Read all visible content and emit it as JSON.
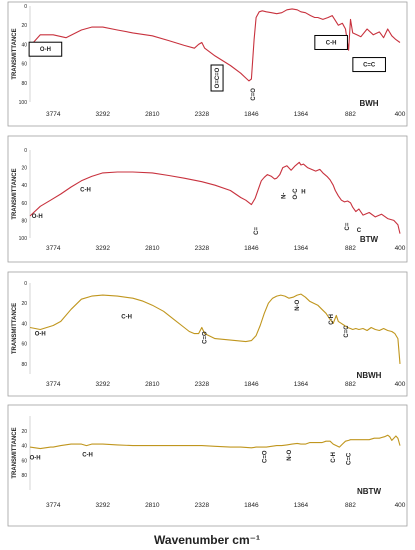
{
  "figure": {
    "xlabel": "Wavenumber cm⁻¹"
  },
  "chart_data": [
    {
      "type": "line",
      "sample": "BWH",
      "color": "#c8323e",
      "ylabel": "TRANSMITTANCE",
      "yticks": [
        0,
        20,
        40,
        60,
        80,
        100
      ],
      "ylim": [
        0,
        100
      ],
      "y_inverted": true,
      "xticks": [
        "3774",
        "3292",
        "2810",
        "2328",
        "1846",
        "1364",
        "882",
        "400"
      ],
      "xlim": [
        4000,
        400
      ],
      "x": [
        4000,
        3900,
        3774,
        3650,
        3500,
        3400,
        3292,
        3150,
        3000,
        2810,
        2650,
        2500,
        2400,
        2360,
        2328,
        2300,
        2200,
        2050,
        1950,
        1900,
        1870,
        1846,
        1820,
        1800,
        1770,
        1740,
        1700,
        1650,
        1600,
        1550,
        1500,
        1450,
        1400,
        1364,
        1320,
        1270,
        1230,
        1200,
        1150,
        1100,
        1060,
        1030,
        1000,
        960,
        930,
        900,
        882,
        860,
        820,
        780,
        720,
        660,
        600,
        560,
        520,
        480,
        440,
        400
      ],
      "y": [
        42,
        30,
        30,
        33,
        25,
        22,
        22,
        25,
        28,
        31,
        36,
        41,
        44,
        40,
        38,
        44,
        52,
        62,
        70,
        75,
        78,
        76,
        35,
        12,
        6,
        5,
        6,
        7,
        8,
        7,
        4,
        3,
        4,
        6,
        7,
        10,
        12,
        12,
        14,
        12,
        10,
        15,
        20,
        18,
        24,
        46,
        14,
        28,
        30,
        32,
        24,
        30,
        27,
        33,
        24,
        31,
        35,
        38
      ],
      "annotations": [
        {
          "text": "O-H",
          "x": 3850,
          "y": 45,
          "boxed": true
        },
        {
          "text": "C-H",
          "x": 1070,
          "y": 38,
          "boxed": true
        },
        {
          "text": "C=C",
          "x": 700,
          "y": 61,
          "boxed": true
        },
        {
          "text": "O=C=O",
          "x": 2180,
          "y": 75,
          "boxed": true,
          "vertical": true
        },
        {
          "text": "C=O",
          "x": 1830,
          "y": 92,
          "vertical": true
        }
      ]
    },
    {
      "type": "line",
      "sample": "BTW",
      "color": "#c8323e",
      "ylabel": "TRANSMITTANCE",
      "yticks": [
        0,
        20,
        40,
        60,
        80,
        100
      ],
      "ylim": [
        0,
        100
      ],
      "y_inverted": true,
      "xticks": [
        "3774",
        "3292",
        "2810",
        "2328",
        "1846",
        "1364",
        "882",
        "400"
      ],
      "xlim": [
        4000,
        400
      ],
      "x": [
        4000,
        3900,
        3800,
        3700,
        3600,
        3500,
        3400,
        3292,
        3150,
        3000,
        2810,
        2650,
        2500,
        2328,
        2200,
        2050,
        1950,
        1900,
        1846,
        1810,
        1780,
        1750,
        1720,
        1690,
        1650,
        1620,
        1600,
        1570,
        1540,
        1500,
        1460,
        1420,
        1380,
        1364,
        1340,
        1300,
        1260,
        1220,
        1180,
        1150,
        1110,
        1080,
        1050,
        1030,
        1000,
        970,
        940,
        910,
        882,
        860,
        830,
        800,
        760,
        700,
        640,
        580,
        520,
        460,
        420,
        400
      ],
      "y": [
        75,
        64,
        57,
        50,
        42,
        35,
        30,
        26,
        25,
        25,
        26,
        29,
        32,
        36,
        40,
        46,
        54,
        57,
        62,
        55,
        45,
        35,
        31,
        28,
        30,
        33,
        32,
        28,
        20,
        18,
        23,
        18,
        14,
        17,
        16,
        20,
        22,
        24,
        22,
        26,
        30,
        34,
        40,
        46,
        52,
        57,
        59,
        58,
        60,
        65,
        70,
        67,
        74,
        71,
        76,
        73,
        78,
        80,
        85,
        95
      ],
      "annotations": [
        {
          "text": "O-H",
          "x": 3930,
          "y": 75
        },
        {
          "text": "C-H",
          "x": 3460,
          "y": 45
        },
        {
          "text": "C=",
          "x": 1800,
          "y": 92,
          "vertical": true
        },
        {
          "text": "N-",
          "x": 1535,
          "y": 52,
          "vertical": true
        },
        {
          "text": "O-C",
          "x": 1420,
          "y": 50,
          "vertical": true
        },
        {
          "text": "H",
          "x": 1340,
          "y": 47
        },
        {
          "text": "C=",
          "x": 915,
          "y": 87,
          "vertical": true
        },
        {
          "text": "C",
          "x": 800,
          "y": 91
        }
      ]
    },
    {
      "type": "line",
      "sample": "NBWH",
      "color": "#c0961e",
      "ylabel": "TRANSMITTANCE",
      "yticks": [
        0,
        20,
        40,
        60,
        80
      ],
      "ylim": [
        0,
        90
      ],
      "y_inverted": true,
      "xticks": [
        "3774",
        "3292",
        "2810",
        "2328",
        "1846",
        "1364",
        "882",
        "400"
      ],
      "xlim": [
        4000,
        400
      ],
      "x": [
        4000,
        3900,
        3774,
        3700,
        3600,
        3500,
        3400,
        3292,
        3150,
        3000,
        2900,
        2810,
        2700,
        2600,
        2500,
        2450,
        2400,
        2360,
        2328,
        2300,
        2200,
        2100,
        2000,
        1900,
        1846,
        1800,
        1760,
        1720,
        1680,
        1640,
        1600,
        1560,
        1520,
        1480,
        1440,
        1400,
        1364,
        1320,
        1280,
        1240,
        1200,
        1160,
        1120,
        1080,
        1050,
        1020,
        1000,
        970,
        940,
        910,
        882,
        860,
        830,
        800,
        760,
        720,
        680,
        640,
        600,
        560,
        520,
        480,
        450,
        420,
        400
      ],
      "y": [
        44,
        46,
        42,
        38,
        26,
        16,
        13,
        12,
        13,
        15,
        18,
        22,
        28,
        36,
        44,
        48,
        50,
        50,
        44,
        50,
        55,
        56,
        57,
        58,
        57,
        52,
        42,
        30,
        20,
        15,
        13,
        12,
        13,
        15,
        14,
        12,
        11,
        14,
        18,
        20,
        22,
        26,
        30,
        36,
        40,
        32,
        38,
        40,
        42,
        44,
        45,
        46,
        45,
        46,
        45,
        47,
        44,
        46,
        47,
        45,
        47,
        48,
        50,
        55,
        80
      ],
      "annotations": [
        {
          "text": "O-H",
          "x": 3900,
          "y": 50
        },
        {
          "text": "C-H",
          "x": 3060,
          "y": 33
        },
        {
          "text": "C=O",
          "x": 2300,
          "y": 54,
          "vertical": true
        },
        {
          "text": "N-O",
          "x": 1400,
          "y": 22,
          "vertical": true
        },
        {
          "text": "C-H",
          "x": 1070,
          "y": 36,
          "vertical": true
        },
        {
          "text": "C=C",
          "x": 925,
          "y": 48,
          "vertical": true
        }
      ]
    },
    {
      "type": "line",
      "sample": "NBTW",
      "color": "#c0961e",
      "ylabel": "TRANSMITTANCE",
      "yticks": [
        20,
        40,
        60,
        80
      ],
      "ylim": [
        0,
        100
      ],
      "y_inverted": true,
      "xticks": [
        "3774",
        "3292",
        "2810",
        "2328",
        "1846",
        "1364",
        "882",
        "400"
      ],
      "xlim": [
        4000,
        400
      ],
      "x": [
        4000,
        3900,
        3800,
        3774,
        3700,
        3600,
        3500,
        3450,
        3400,
        3292,
        3150,
        3000,
        2810,
        2650,
        2500,
        2328,
        2200,
        2050,
        1950,
        1846,
        1800,
        1750,
        1700,
        1650,
        1600,
        1550,
        1500,
        1450,
        1400,
        1364,
        1320,
        1280,
        1240,
        1200,
        1160,
        1120,
        1080,
        1050,
        1020,
        990,
        960,
        930,
        900,
        882,
        850,
        800,
        750,
        700,
        650,
        600,
        550,
        520,
        500,
        480,
        460,
        440,
        420,
        400
      ],
      "y": [
        42,
        44,
        42,
        42,
        40,
        38,
        38,
        40,
        38,
        38,
        39,
        40,
        40,
        40,
        40,
        40,
        41,
        42,
        42,
        43,
        42,
        42,
        42,
        41,
        40,
        40,
        39,
        38,
        37,
        38,
        38,
        36,
        36,
        36,
        36,
        34,
        34,
        38,
        40,
        42,
        38,
        34,
        33,
        32,
        32,
        32,
        32,
        32,
        30,
        30,
        28,
        26,
        28,
        33,
        30,
        27,
        30,
        40
      ],
      "annotations": [
        {
          "text": "O-H",
          "x": 3950,
          "y": 56
        },
        {
          "text": "C-H",
          "x": 3440,
          "y": 52
        },
        {
          "text": "C=O",
          "x": 1720,
          "y": 55,
          "vertical": true
        },
        {
          "text": "N-O",
          "x": 1480,
          "y": 53,
          "vertical": true
        },
        {
          "text": "C-H",
          "x": 1050,
          "y": 56,
          "vertical": true
        },
        {
          "text": "C=C",
          "x": 900,
          "y": 58,
          "vertical": true
        }
      ]
    }
  ]
}
